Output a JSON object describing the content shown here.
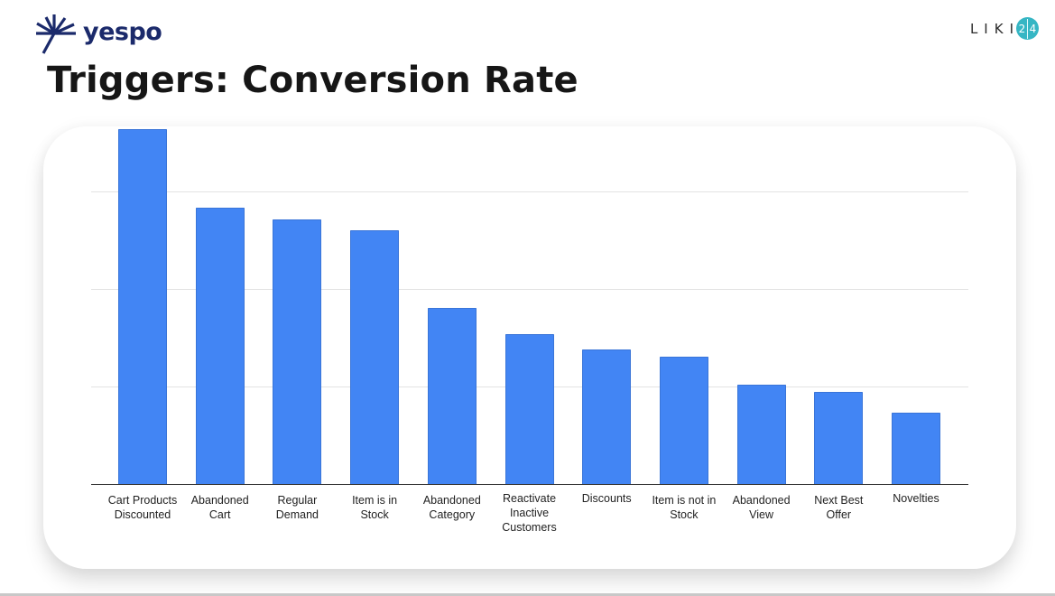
{
  "header": {
    "brand_name": "yespo",
    "brand_color": "#1b2a6b",
    "partner_logo_text": "LIKI",
    "partner_badge_digits": [
      "2",
      "4"
    ],
    "partner_badge_color": "#36b6c4"
  },
  "slide": {
    "title": "Triggers: Conversion Rate"
  },
  "chart_data": {
    "type": "bar",
    "title": "Triggers: Conversion Rate",
    "xlabel": "",
    "ylabel": "",
    "y_tick_labels_visible": false,
    "units": "relative (1 unit = 1 gridline interval; no axis labels shown)",
    "ylim": [
      0,
      4
    ],
    "gridlines": [
      1,
      2,
      3
    ],
    "grid": true,
    "legend": null,
    "bar_color": "#4285f4",
    "categories": [
      "Cart Products\nDiscounted",
      "Abandoned\nCart",
      "Regular\nDemand",
      "Item is in\nStock",
      "Abandoned\nCategory",
      "Reactivate\nInactive\nCustomers",
      "Discounts",
      "Item is not in\nStock",
      "Abandoned\nView",
      "Next Best\nOffer",
      "Novelties"
    ],
    "values": [
      3.64,
      2.83,
      2.71,
      2.6,
      1.81,
      1.54,
      1.38,
      1.31,
      1.02,
      0.94,
      0.73
    ]
  }
}
